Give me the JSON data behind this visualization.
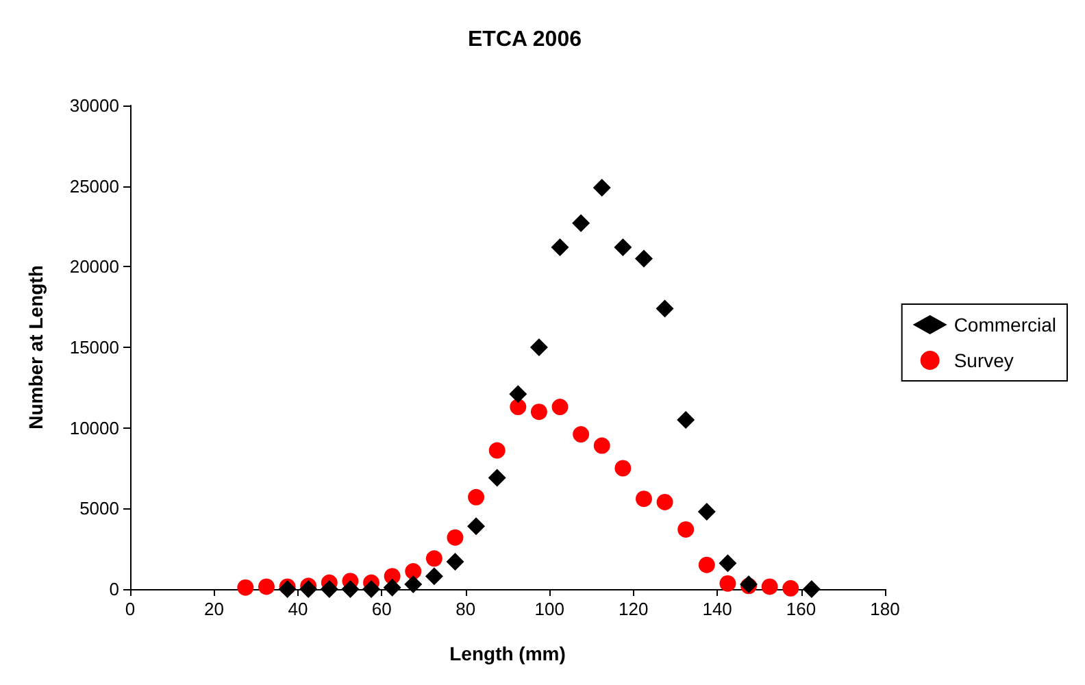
{
  "chart_data": {
    "type": "scatter",
    "title": "ETCA 2006",
    "xlabel": "Length (mm)",
    "ylabel": "Number at Length",
    "xlim": [
      0,
      180
    ],
    "xticks": [
      0,
      20,
      40,
      60,
      80,
      100,
      120,
      140,
      160,
      180
    ],
    "ylim": [
      0,
      30000
    ],
    "yticks": [
      0,
      5000,
      10000,
      15000,
      20000,
      25000,
      30000
    ],
    "grid": false,
    "legend": "right",
    "series": [
      {
        "name": "Commercial",
        "color": "#000000",
        "marker": "diamond",
        "x": [
          37.5,
          42.5,
          47.5,
          52.5,
          57.5,
          62.5,
          67.5,
          72.5,
          77.5,
          82.5,
          87.5,
          92.5,
          97.5,
          102.5,
          107.5,
          112.5,
          117.5,
          122.5,
          127.5,
          132.5,
          137.5,
          142.5,
          147.5,
          162.5
        ],
        "values": [
          0,
          0,
          0,
          0,
          0,
          100,
          300,
          800,
          1700,
          3900,
          6900,
          12100,
          15000,
          21200,
          22700,
          24900,
          21200,
          20500,
          17400,
          10500,
          4800,
          1600,
          300,
          0
        ]
      },
      {
        "name": "Survey",
        "color": "#ff0000",
        "marker": "circle",
        "x": [
          27.5,
          32.5,
          37.5,
          42.5,
          47.5,
          52.5,
          57.5,
          62.5,
          67.5,
          72.5,
          77.5,
          82.5,
          87.5,
          92.5,
          97.5,
          102.5,
          107.5,
          112.5,
          117.5,
          122.5,
          127.5,
          132.5,
          137.5,
          142.5,
          147.5,
          152.5,
          157.5
        ],
        "values": [
          100,
          150,
          150,
          200,
          400,
          500,
          400,
          800,
          1100,
          1900,
          3200,
          5700,
          8600,
          11300,
          11000,
          11300,
          9600,
          8900,
          7500,
          5600,
          5400,
          3700,
          1500,
          350,
          200,
          150,
          50
        ]
      }
    ]
  }
}
